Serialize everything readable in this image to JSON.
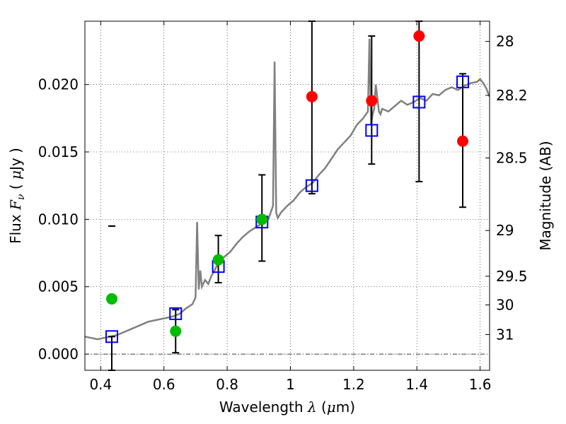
{
  "chart_data": {
    "type": "scatter",
    "xlabel": "Wavelength λ (μm)",
    "ylabel": "Flux F_ν (μJy)",
    "y2label": "Magnitude (AB)",
    "xlim": [
      0.35,
      1.63
    ],
    "ylim": [
      -0.0012,
      0.0247
    ],
    "x_ticks": [
      0.4,
      0.6,
      0.8,
      1.0,
      1.2,
      1.4,
      1.6
    ],
    "x_tick_labels": [
      "0.4",
      "0.6",
      "0.8",
      "1",
      "1.2",
      "1.4",
      "1.6"
    ],
    "y_ticks": [
      0.0,
      0.005,
      0.01,
      0.015,
      0.02
    ],
    "y_tick_labels": [
      "0.000",
      "0.005",
      "0.010",
      "0.015",
      "0.020"
    ],
    "y2_ticks": [
      {
        "label": "28",
        "flux": 0.0232
      },
      {
        "label": "28.2",
        "flux": 0.0192
      },
      {
        "label": "28.5",
        "flux": 0.01455
      },
      {
        "label": "29",
        "flux": 0.00917
      },
      {
        "label": "29.5",
        "flux": 0.00578
      },
      {
        "label": "30",
        "flux": 0.00365
      },
      {
        "label": "31",
        "flux": 0.00145
      }
    ],
    "grid": true,
    "zero_line": true,
    "spectrum": {
      "color": "#808080",
      "x": [
        0.35,
        0.37,
        0.39,
        0.41,
        0.43,
        0.45,
        0.47,
        0.49,
        0.51,
        0.53,
        0.55,
        0.57,
        0.59,
        0.61,
        0.63,
        0.65,
        0.67,
        0.69,
        0.7,
        0.705,
        0.71,
        0.715,
        0.72,
        0.73,
        0.74,
        0.75,
        0.76,
        0.77,
        0.79,
        0.81,
        0.83,
        0.85,
        0.87,
        0.89,
        0.91,
        0.93,
        0.945,
        0.95,
        0.955,
        0.96,
        0.97,
        0.99,
        1.01,
        1.03,
        1.05,
        1.07,
        1.09,
        1.11,
        1.13,
        1.15,
        1.17,
        1.19,
        1.21,
        1.23,
        1.245,
        1.25,
        1.255,
        1.26,
        1.265,
        1.27,
        1.275,
        1.28,
        1.285,
        1.29,
        1.31,
        1.33,
        1.35,
        1.37,
        1.39,
        1.41,
        1.43,
        1.45,
        1.47,
        1.49,
        1.51,
        1.53,
        1.55,
        1.57,
        1.59,
        1.6,
        1.61,
        1.62,
        1.63
      ],
      "y": [
        0.0013,
        0.0012,
        0.0011,
        0.0012,
        0.0013,
        0.0014,
        0.0016,
        0.0018,
        0.002,
        0.0022,
        0.0024,
        0.0025,
        0.0026,
        0.0027,
        0.0028,
        0.003,
        0.0034,
        0.0037,
        0.0042,
        0.0098,
        0.0048,
        0.0062,
        0.005,
        0.0055,
        0.0052,
        0.0058,
        0.0062,
        0.0067,
        0.0072,
        0.0076,
        0.0082,
        0.0087,
        0.0091,
        0.0094,
        0.0097,
        0.01,
        0.011,
        0.0217,
        0.0105,
        0.0101,
        0.0105,
        0.011,
        0.0114,
        0.012,
        0.0124,
        0.0127,
        0.0133,
        0.0138,
        0.0145,
        0.0152,
        0.0157,
        0.0162,
        0.017,
        0.0175,
        0.018,
        0.0234,
        0.017,
        0.0178,
        0.0182,
        0.02,
        0.019,
        0.018,
        0.0178,
        0.0182,
        0.018,
        0.0184,
        0.0188,
        0.0185,
        0.0187,
        0.019,
        0.0188,
        0.0193,
        0.0192,
        0.0196,
        0.0198,
        0.0196,
        0.0199,
        0.0201,
        0.0202,
        0.0204,
        0.0201,
        0.0197,
        0.0191
      ]
    },
    "model_points": {
      "color": "#0000ff",
      "x": [
        0.435,
        0.637,
        0.772,
        0.91,
        1.068,
        1.257,
        1.407,
        1.545
      ],
      "y": [
        0.0013,
        0.003,
        0.0065,
        0.0098,
        0.0125,
        0.0166,
        0.0187,
        0.0202
      ]
    },
    "detections": {
      "color": "#00bb00",
      "x": [
        0.435,
        0.637,
        0.772,
        0.91
      ],
      "y": [
        0.0041,
        0.0017,
        0.007,
        0.01
      ],
      "yerr_lo": [
        0.0095,
        0.0001,
        0.0053,
        0.0069
      ],
      "yerr_hi": [
        0.0095,
        0.0033,
        0.0088,
        0.0133
      ]
    },
    "upper_limits": {
      "color": "#ff0000",
      "x": [
        1.068,
        1.257,
        1.407,
        1.545
      ],
      "y": [
        0.0191,
        0.0188,
        0.0236,
        0.0158
      ],
      "yerr_lo": [
        0.0119,
        0.0141,
        0.0128,
        0.0109
      ],
      "yerr_hi": [
        0.0247,
        0.0236,
        0.0247,
        0.0208
      ]
    },
    "extra_errorbar": {
      "x": 0.435,
      "lo": -0.0012,
      "hi": 0.0013
    }
  }
}
